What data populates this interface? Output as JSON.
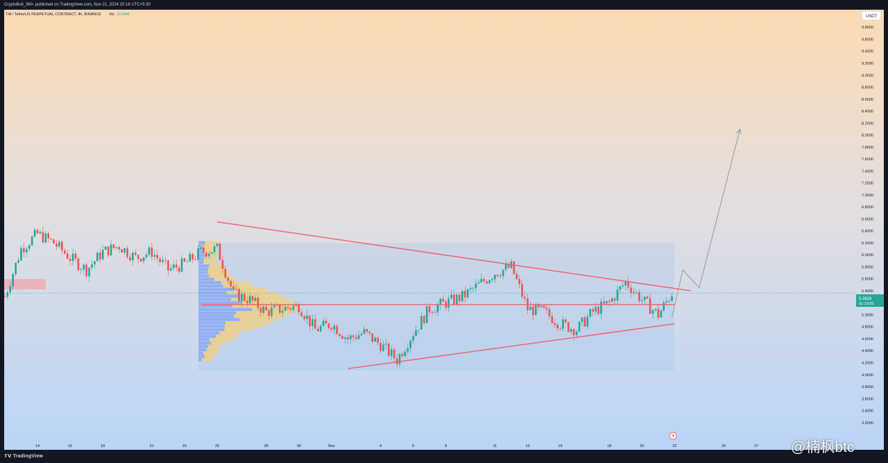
{
  "header": {
    "published": "CryptoBull_360- published on TradingView.com, Nov 21, 2024 20:16 UTC+5:30"
  },
  "legend": {
    "symbol": "TIA / TetherUS PERPETUAL CONTRACT, 4h, BINANCE",
    "vol_label": "Vol",
    "vol_value": "13.58M"
  },
  "currency": "USDT",
  "price_tag": {
    "price": "5.3628",
    "countdown": "01:13:05"
  },
  "footer": {
    "brand": "TradingView"
  },
  "watermark": "@楠枫btc",
  "colors": {
    "up": "#26a69a",
    "down": "#ef5350",
    "line": "#f2616b",
    "arrow": "#9b9ea6",
    "profile_blue": "#8aa8f5",
    "profile_yellow": "#f1cf7f"
  },
  "chart_data": {
    "type": "candlestick",
    "timeframe": "4h",
    "ylim": [
      3.0,
      10.0
    ],
    "y_ticks": [
      "3.2000",
      "3.4000",
      "3.6000",
      "3.8000",
      "4.0000",
      "4.2000",
      "4.4000",
      "4.6000",
      "4.8000",
      "5.0000",
      "5.2000",
      "5.4000",
      "5.6000",
      "5.8000",
      "6.0000",
      "6.2000",
      "6.4000",
      "6.6000",
      "6.8000",
      "7.0000",
      "7.2000",
      "7.4000",
      "7.6000",
      "7.8000",
      "8.0000",
      "8.2000",
      "8.4000",
      "8.6000",
      "8.8000",
      "9.0000",
      "9.2000",
      "9.4000",
      "9.6000",
      "9.8000"
    ],
    "x_ticks": [
      "14",
      "16",
      "18",
      "21",
      "23",
      "25",
      "28",
      "30",
      "Nov",
      "4",
      "6",
      "8",
      "11",
      "13",
      "15",
      "18",
      "20",
      "22",
      "25",
      "27"
    ],
    "price_path": [
      [
        "Oct 12",
        5.3
      ],
      [
        "Oct 13",
        6.1
      ],
      [
        "Oct 14",
        6.35
      ],
      [
        "Oct 15",
        6.2
      ],
      [
        "Oct 16",
        5.95
      ],
      [
        "Oct 17",
        5.75
      ],
      [
        "Oct 18",
        6.05
      ],
      [
        "Oct 19",
        6.15
      ],
      [
        "Oct 20",
        5.95
      ],
      [
        "Oct 21",
        6.05
      ],
      [
        "Oct 22",
        5.75
      ],
      [
        "Oct 23",
        5.85
      ],
      [
        "Oct 24",
        6.05
      ],
      [
        "Oct 25",
        6.1
      ],
      [
        "Oct 26",
        5.35
      ],
      [
        "Oct 27",
        5.25
      ],
      [
        "Oct 28",
        5.05
      ],
      [
        "Oct 29",
        5.1
      ],
      [
        "Oct 30",
        5.15
      ],
      [
        "Oct 31",
        4.75
      ],
      [
        "Nov 1",
        4.85
      ],
      [
        "Nov 2",
        4.6
      ],
      [
        "Nov 3",
        4.7
      ],
      [
        "Nov 4",
        4.5
      ],
      [
        "Nov 5",
        4.25
      ],
      [
        "Nov 6",
        4.7
      ],
      [
        "Nov 7",
        5.1
      ],
      [
        "Nov 8",
        5.2
      ],
      [
        "Nov 9",
        5.3
      ],
      [
        "Nov 10",
        5.5
      ],
      [
        "Nov 11",
        5.7
      ],
      [
        "Nov 12",
        5.8
      ],
      [
        "Nov 13",
        5.1
      ],
      [
        "Nov 14",
        5.05
      ],
      [
        "Nov 15",
        4.85
      ],
      [
        "Nov 16",
        4.75
      ],
      [
        "Nov 17",
        5.05
      ],
      [
        "Nov 18",
        5.2
      ],
      [
        "Nov 19",
        5.55
      ],
      [
        "Nov 20",
        5.25
      ],
      [
        "Nov 21",
        5.0
      ],
      [
        "Nov 21 20:00",
        5.3628
      ]
    ],
    "trendlines": [
      {
        "name": "descending-resistance",
        "from": [
          "Oct 25",
          6.55
        ],
        "to": [
          "Nov 23",
          5.4
        ]
      },
      {
        "name": "ascending-support",
        "from": [
          "Nov 2",
          4.1
        ],
        "to": [
          "Nov 22",
          4.85
        ]
      },
      {
        "name": "horizontal-level",
        "from": [
          "Oct 24",
          5.17
        ],
        "to": [
          "Nov 22",
          5.17
        ]
      }
    ],
    "projection": [
      [
        "Nov 21 20:00",
        4.95
      ],
      [
        "Nov 22 12:00",
        5.75
      ],
      [
        "Nov 23 12:00",
        5.45
      ],
      [
        "Nov 26",
        8.1
      ]
    ],
    "current_price": 5.3628
  }
}
